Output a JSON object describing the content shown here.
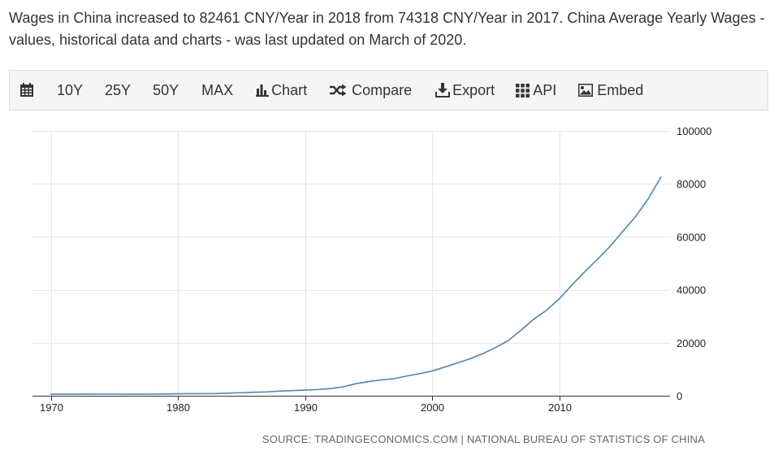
{
  "headline": "Wages in China increased to 82461 CNY/Year in 2018 from 74318 CNY/Year in 2017. China Average Yearly Wages - values, historical data and charts - was last updated on March of 2020.",
  "toolbar": {
    "ten_y": "10Y",
    "twenty_five_y": "25Y",
    "fifty_y": "50Y",
    "max": "MAX",
    "chart": "Chart",
    "compare": "Compare",
    "export": "Export",
    "api": "API",
    "embed": "Embed"
  },
  "icons": [
    "calendar-icon",
    "bar-chart-icon",
    "shuffle-icon",
    "download-icon",
    "grid-icon",
    "image-icon"
  ],
  "colors": {
    "line": "#4a86b8",
    "grid": "#e6e6e6",
    "toolbar_bg": "#f5f5f5"
  },
  "source_text": "SOURCE: TRADINGECONOMICS.COM | NATIONAL BUREAU OF STATISTICS OF CHINA",
  "chart_data": {
    "type": "line",
    "title": "",
    "xlabel": "",
    "ylabel": "",
    "xlim": [
      1969,
      2019
    ],
    "ylim": [
      0,
      100000
    ],
    "x_ticks": [
      1970,
      1980,
      1990,
      2000,
      2010
    ],
    "y_ticks": [
      0,
      20000,
      40000,
      60000,
      80000,
      100000
    ],
    "y_axis_position": "right",
    "grid": true,
    "legend": "none",
    "series": [
      {
        "x": [
          1970,
          1971,
          1972,
          1973,
          1974,
          1975,
          1976,
          1977,
          1978,
          1979,
          1980,
          1981,
          1982,
          1983,
          1984,
          1985,
          1986,
          1987,
          1988,
          1989,
          1990,
          1991,
          1992,
          1993,
          1994,
          1995,
          1996,
          1997,
          1998,
          1999,
          2000,
          2001,
          2002,
          2003,
          2004,
          2005,
          2006,
          2007,
          2008,
          2009,
          2010,
          2011,
          2012,
          2013,
          2014,
          2015,
          2016,
          2017,
          2018
        ],
        "values": [
          561,
          589,
          606,
          619,
          611,
          613,
          605,
          602,
          615,
          668,
          762,
          772,
          798,
          826,
          974,
          1148,
          1329,
          1459,
          1747,
          1935,
          2140,
          2340,
          2711,
          3371,
          4538,
          5348,
          5980,
          6444,
          7446,
          8319,
          9333,
          10834,
          12373,
          13969,
          15920,
          18200,
          20856,
          24721,
          28898,
          32244,
          36539,
          41799,
          46769,
          51483,
          56360,
          62029,
          67569,
          74318,
          82461
        ]
      }
    ]
  }
}
